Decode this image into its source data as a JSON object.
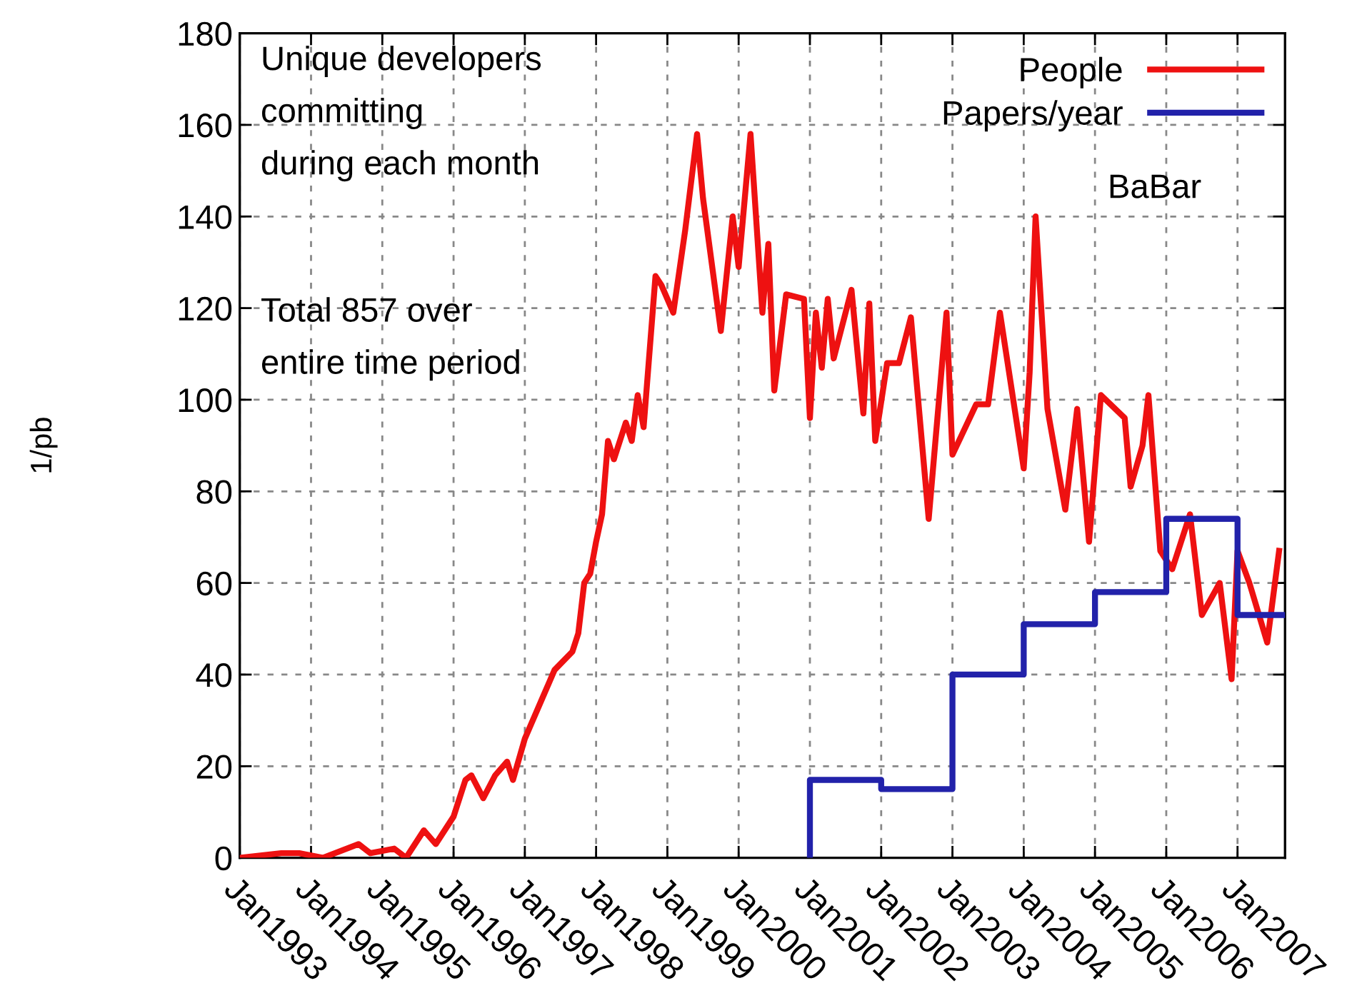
{
  "chart_data": {
    "type": "line",
    "ylabel": "1/pb",
    "annotations": [
      "Unique developers\ncommitting\nduring each month",
      "Total 857 over\nentire time period",
      "BaBar"
    ],
    "xlim": [
      "1993-01",
      "2007-09"
    ],
    "ylim": [
      0,
      180
    ],
    "yticks": [
      0,
      20,
      40,
      60,
      80,
      100,
      120,
      140,
      160,
      180
    ],
    "xticks": [
      {
        "value": "1993-01",
        "label": "Jan1993"
      },
      {
        "value": "1994-01",
        "label": "Jan1994"
      },
      {
        "value": "1995-01",
        "label": "Jan1995"
      },
      {
        "value": "1996-01",
        "label": "Jan1996"
      },
      {
        "value": "1997-01",
        "label": "Jan1997"
      },
      {
        "value": "1998-01",
        "label": "Jan1998"
      },
      {
        "value": "1999-01",
        "label": "Jan1999"
      },
      {
        "value": "2000-01",
        "label": "Jan2000"
      },
      {
        "value": "2001-01",
        "label": "Jan2001"
      },
      {
        "value": "2002-01",
        "label": "Jan2002"
      },
      {
        "value": "2003-01",
        "label": "Jan2003"
      },
      {
        "value": "2004-01",
        "label": "Jan2004"
      },
      {
        "value": "2005-01",
        "label": "Jan2005"
      },
      {
        "value": "2006-01",
        "label": "Jan2006"
      },
      {
        "value": "2007-01",
        "label": "Jan2007"
      }
    ],
    "grid": true,
    "legend": "top right",
    "series": [
      {
        "name": "People",
        "color": "#ee1111",
        "x": [
          "1993-01",
          "1993-08",
          "1993-11",
          "1994-03",
          "1994-09",
          "1994-11",
          "1995-03",
          "1995-05",
          "1995-08",
          "1995-10",
          "1996-01",
          "1996-03",
          "1996-04",
          "1996-06",
          "1996-08",
          "1996-10",
          "1996-11",
          "1997-01",
          "1997-04",
          "1997-06",
          "1997-09",
          "1997-10",
          "1997-11",
          "1997-12",
          "1998-01",
          "1998-02",
          "1998-03",
          "1998-04",
          "1998-06",
          "1998-07",
          "1998-08",
          "1998-09",
          "1998-11",
          "1998-12",
          "1999-02",
          "1999-04",
          "1999-06",
          "1999-07",
          "1999-10",
          "1999-12",
          "2000-01",
          "2000-03",
          "2000-05",
          "2000-06",
          "2000-07",
          "2000-09",
          "2000-12",
          "2001-01",
          "2001-02",
          "2001-03",
          "2001-04",
          "2001-05",
          "2001-08",
          "2001-10",
          "2001-11",
          "2001-12",
          "2002-02",
          "2002-04",
          "2002-06",
          "2002-09",
          "2002-12",
          "2003-01",
          "2003-05",
          "2003-07",
          "2003-09",
          "2004-01",
          "2004-02",
          "2004-03",
          "2004-05",
          "2004-08",
          "2004-10",
          "2004-12",
          "2005-02",
          "2005-06",
          "2005-07",
          "2005-09",
          "2005-10",
          "2005-12",
          "2006-02",
          "2006-05",
          "2006-07",
          "2006-10",
          "2006-12",
          "2007-01",
          "2007-03",
          "2007-06",
          "2007-08"
        ],
        "values": [
          0,
          1,
          1,
          0,
          3,
          1,
          2,
          0,
          6,
          3,
          9,
          17,
          18,
          13,
          18,
          21,
          17,
          26,
          35,
          41,
          45,
          49,
          60,
          62,
          69,
          75,
          91,
          87,
          95,
          91,
          101,
          94,
          127,
          125,
          119,
          137,
          158,
          144,
          115,
          140,
          129,
          158,
          119,
          134,
          102,
          123,
          122,
          96,
          119,
          107,
          122,
          109,
          124,
          97,
          121,
          91,
          108,
          108,
          118,
          74,
          119,
          88,
          99,
          99,
          119,
          85,
          106,
          140,
          98,
          76,
          98,
          69,
          101,
          96,
          81,
          90,
          101,
          67,
          63,
          75,
          53,
          60,
          39,
          67,
          60,
          47,
          67
        ]
      },
      {
        "name": "Papers/year",
        "color": "#2222aa",
        "type": "step",
        "x": [
          "2001-01",
          "2001-01",
          "2002-01",
          "2003-01",
          "2004-01",
          "2005-01",
          "2006-01",
          "2007-01",
          "2007-09"
        ],
        "values": [
          0,
          17,
          15,
          40,
          51,
          58,
          74,
          53,
          53
        ]
      }
    ]
  }
}
